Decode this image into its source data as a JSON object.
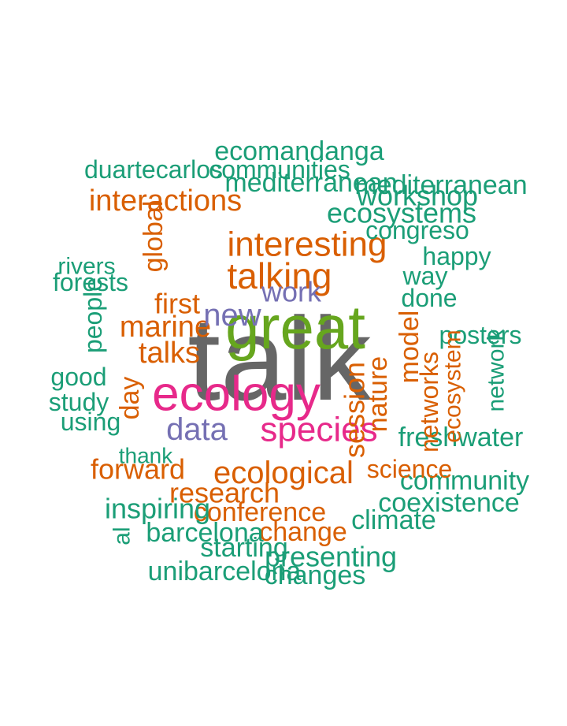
{
  "palette": {
    "teal": "#1b9e77",
    "orange": "#d95f02",
    "purple": "#7570b3",
    "pink": "#e7298a",
    "green": "#66a61e",
    "gray": "#666666"
  },
  "words": [
    {
      "text": "talk",
      "color": "gray"
    },
    {
      "text": "great",
      "color": "green"
    },
    {
      "text": "ecology",
      "color": "pink"
    },
    {
      "text": "species",
      "color": "pink"
    },
    {
      "text": "talking",
      "color": "orange"
    },
    {
      "text": "interesting",
      "color": "orange"
    },
    {
      "text": "marine",
      "color": "orange"
    },
    {
      "text": "ecological",
      "color": "orange"
    },
    {
      "text": "research",
      "color": "orange"
    },
    {
      "text": "conference",
      "color": "orange"
    },
    {
      "text": "forward",
      "color": "orange"
    },
    {
      "text": "change",
      "color": "orange"
    },
    {
      "text": "interactions",
      "color": "orange"
    },
    {
      "text": "workshop",
      "color": "teal"
    },
    {
      "text": "mediterranean",
      "color": "teal"
    },
    {
      "text": "ecosystems",
      "color": "teal"
    },
    {
      "text": "ecomandanga",
      "color": "teal"
    },
    {
      "text": "communities",
      "color": "teal"
    },
    {
      "text": "duartecarlos",
      "color": "teal"
    },
    {
      "text": "congreso",
      "color": "teal"
    },
    {
      "text": "happy",
      "color": "teal"
    },
    {
      "text": "way",
      "color": "teal"
    },
    {
      "text": "done",
      "color": "teal"
    },
    {
      "text": "rivers",
      "color": "teal"
    },
    {
      "text": "forests",
      "color": "teal"
    },
    {
      "text": "people",
      "color": "teal"
    },
    {
      "text": "good",
      "color": "teal"
    },
    {
      "text": "study",
      "color": "teal"
    },
    {
      "text": "using",
      "color": "teal"
    },
    {
      "text": "thank",
      "color": "teal"
    },
    {
      "text": "inspiring",
      "color": "teal"
    },
    {
      "text": "barcelona",
      "color": "teal"
    },
    {
      "text": "starting",
      "color": "teal"
    },
    {
      "text": "presenting",
      "color": "teal"
    },
    {
      "text": "unibarcelona",
      "color": "teal"
    },
    {
      "text": "changes",
      "color": "teal"
    },
    {
      "text": "climate",
      "color": "teal"
    },
    {
      "text": "coexistence",
      "color": "teal"
    },
    {
      "text": "community",
      "color": "teal"
    },
    {
      "text": "freshwater",
      "color": "teal"
    },
    {
      "text": "posters",
      "color": "teal"
    },
    {
      "text": "network",
      "color": "teal"
    },
    {
      "text": "al",
      "color": "teal"
    },
    {
      "text": "science",
      "color": "orange"
    },
    {
      "text": "mediterranean",
      "color": "teal"
    },
    {
      "text": "work",
      "color": "purple"
    },
    {
      "text": "new",
      "color": "purple"
    },
    {
      "text": "data",
      "color": "purple"
    },
    {
      "text": "first",
      "color": "orange"
    },
    {
      "text": "session",
      "color": "orange"
    },
    {
      "text": "model",
      "color": "orange"
    },
    {
      "text": "talks",
      "color": "orange"
    },
    {
      "text": "day",
      "color": "orange"
    },
    {
      "text": "global",
      "color": "orange"
    },
    {
      "text": "ecosystem",
      "color": "orange"
    },
    {
      "text": "nature",
      "color": "orange"
    },
    {
      "text": "networks",
      "color": "orange"
    }
  ]
}
